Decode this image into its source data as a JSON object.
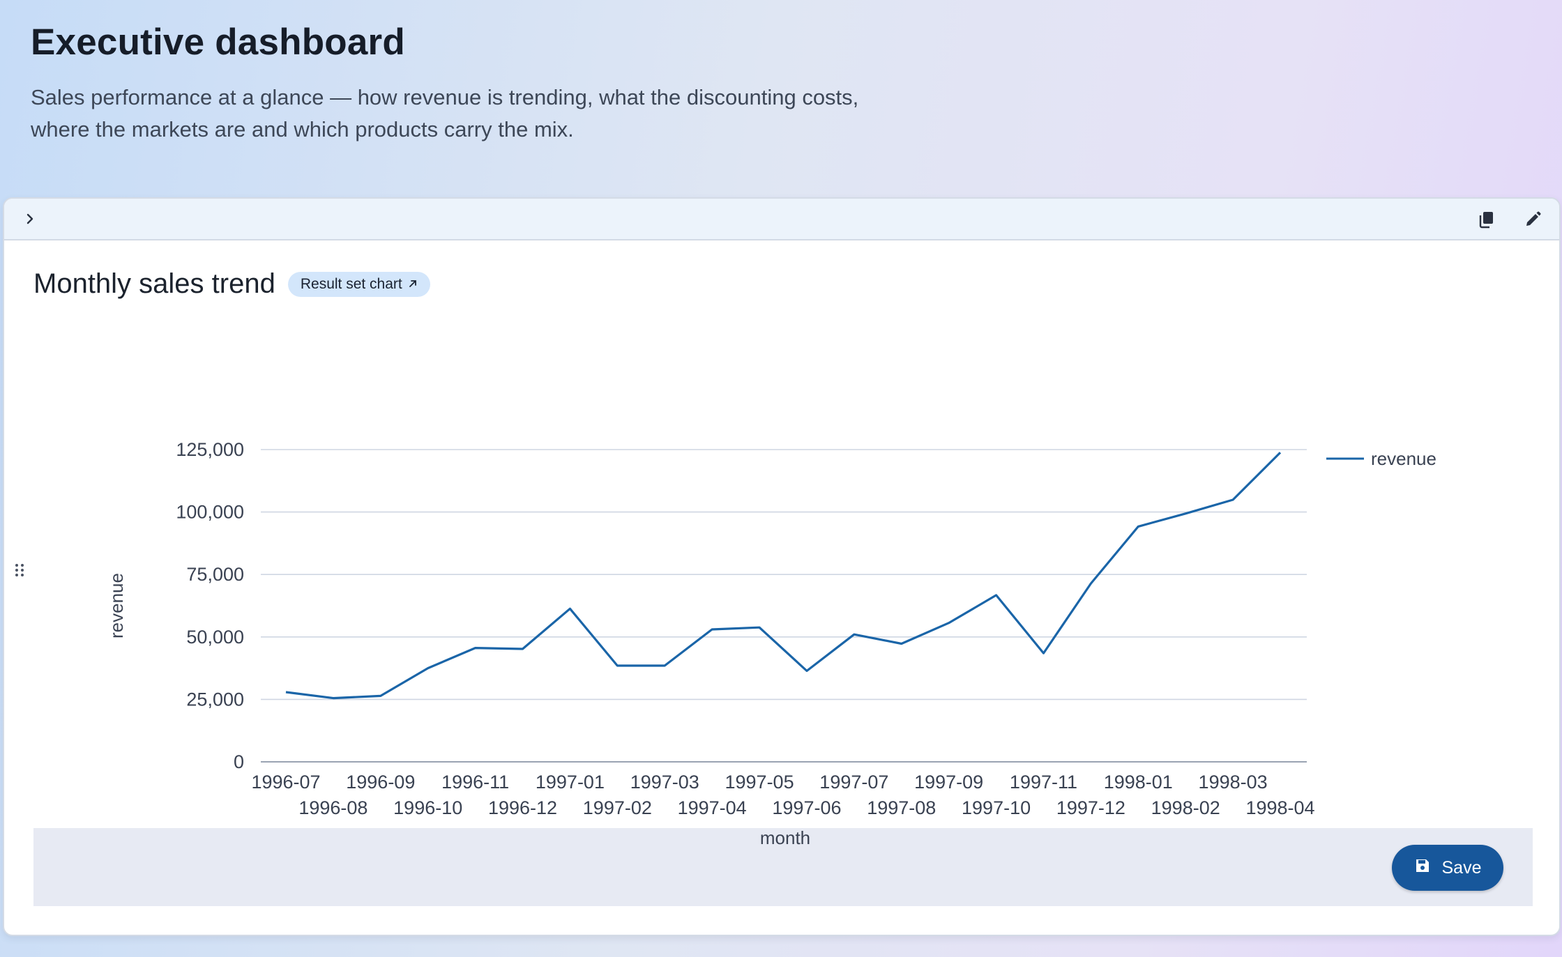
{
  "header": {
    "title": "Executive dashboard",
    "subtitle": "Sales performance at a glance — how revenue is trending, what the discounting costs, where the markets are and which products carry the mix."
  },
  "panel": {
    "card": {
      "title": "Monthly sales trend",
      "badge_label": "Result set chart",
      "badge_icon": "arrow-up-right-icon"
    },
    "toolbar_icons": [
      "chevron-right-icon",
      "copy-icon",
      "pencil-icon"
    ],
    "card_action_icons": [
      "link-icon",
      "sliders-icon",
      "copy-icon",
      "pencil-icon"
    ],
    "save_label": "Save",
    "save_icon": "floppy-disk-icon"
  },
  "colors": {
    "line": "#1a65a8",
    "save_button": "#17579b",
    "badge_bg": "#d3e6fb"
  },
  "chart_data": {
    "type": "line",
    "xlabel": "month",
    "ylabel": "revenue",
    "ylim": [
      0,
      125000
    ],
    "yticks": [
      "0",
      "25,000",
      "50,000",
      "75,000",
      "100,000",
      "125,000"
    ],
    "ytick_values": [
      0,
      25000,
      50000,
      75000,
      100000,
      125000
    ],
    "grid": true,
    "legend_position": "top-right",
    "categories": [
      "1996-07",
      "1996-08",
      "1996-09",
      "1996-10",
      "1996-11",
      "1996-12",
      "1997-01",
      "1997-02",
      "1997-03",
      "1997-04",
      "1997-05",
      "1997-06",
      "1997-07",
      "1997-08",
      "1997-09",
      "1997-10",
      "1997-11",
      "1997-12",
      "1998-01",
      "1998-02",
      "1998-03",
      "1998-04"
    ],
    "series": [
      {
        "name": "revenue",
        "values": [
          27900,
          25500,
          26400,
          37500,
          45600,
          45200,
          61300,
          38500,
          38500,
          53000,
          53800,
          36400,
          51000,
          47300,
          55600,
          66700,
          43500,
          71400,
          94200,
          99400,
          104900,
          123800
        ]
      }
    ]
  }
}
